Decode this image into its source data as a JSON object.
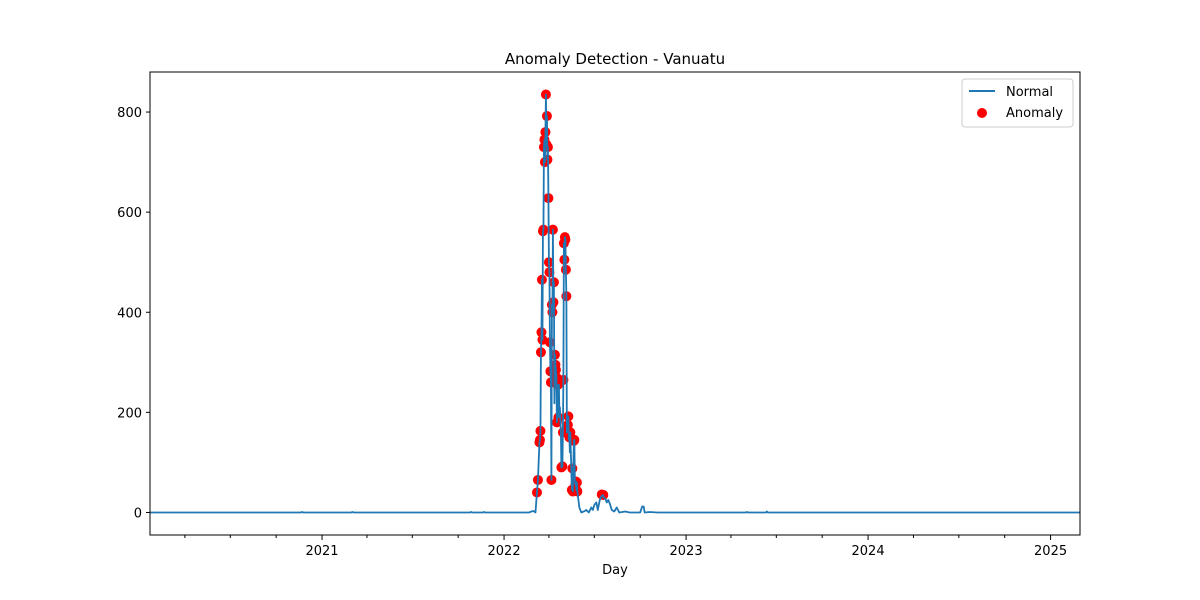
{
  "chart_data": {
    "type": "line",
    "title": "Anomaly Detection - Vanuatu",
    "xlabel": "Day",
    "ylabel": "",
    "xlim": [
      "2020-01-22",
      "2025-03-01"
    ],
    "ylim": [
      -45,
      880
    ],
    "x_ticks": [
      "2021",
      "2022",
      "2023",
      "2024",
      "2025"
    ],
    "y_ticks": [
      0,
      200,
      400,
      600,
      800
    ],
    "grid": false,
    "legend": {
      "position": "top-right",
      "entries": [
        "Normal",
        "Anomaly"
      ]
    },
    "colors": {
      "normal": "#1f77b4",
      "anomaly": "#ff0000"
    },
    "series": [
      {
        "name": "Normal",
        "type": "line",
        "points": [
          [
            "2020-01-22",
            0
          ],
          [
            "2020-11-20",
            0
          ],
          [
            "2020-11-22",
            1
          ],
          [
            "2020-11-24",
            0
          ],
          [
            "2021-03-01",
            0
          ],
          [
            "2021-03-03",
            1
          ],
          [
            "2021-03-05",
            0
          ],
          [
            "2021-10-25",
            0
          ],
          [
            "2021-10-27",
            1
          ],
          [
            "2021-10-29",
            0
          ],
          [
            "2021-11-20",
            0
          ],
          [
            "2021-11-22",
            1
          ],
          [
            "2021-11-24",
            0
          ],
          [
            "2022-02-20",
            0
          ],
          [
            "2022-02-25",
            2
          ],
          [
            "2022-03-01",
            3
          ],
          [
            "2022-03-05",
            0
          ],
          [
            "2022-03-08",
            40
          ],
          [
            "2022-03-10",
            65
          ],
          [
            "2022-03-13",
            140
          ],
          [
            "2022-03-14",
            145
          ],
          [
            "2022-03-15",
            163
          ],
          [
            "2022-03-16",
            320
          ],
          [
            "2022-03-17",
            360
          ],
          [
            "2022-03-18",
            465
          ],
          [
            "2022-03-19",
            345
          ],
          [
            "2022-03-20",
            562
          ],
          [
            "2022-03-21",
            565
          ],
          [
            "2022-03-22",
            730
          ],
          [
            "2022-03-23",
            745
          ],
          [
            "2022-03-24",
            700
          ],
          [
            "2022-03-25",
            760
          ],
          [
            "2022-03-26",
            835
          ],
          [
            "2022-03-27",
            735
          ],
          [
            "2022-03-28",
            792
          ],
          [
            "2022-03-29",
            705
          ],
          [
            "2022-03-30",
            730
          ],
          [
            "2022-03-31",
            628
          ],
          [
            "2022-04-01",
            500
          ],
          [
            "2022-04-02",
            480
          ],
          [
            "2022-04-03",
            340
          ],
          [
            "2022-04-04",
            282
          ],
          [
            "2022-04-05",
            260
          ],
          [
            "2022-04-06",
            65
          ],
          [
            "2022-04-07",
            415
          ],
          [
            "2022-04-08",
            400
          ],
          [
            "2022-04-09",
            565
          ],
          [
            "2022-04-10",
            420
          ],
          [
            "2022-04-11",
            460
          ],
          [
            "2022-04-12",
            218
          ],
          [
            "2022-04-13",
            315
          ],
          [
            "2022-04-14",
            295
          ],
          [
            "2022-04-15",
            285
          ],
          [
            "2022-04-16",
            270
          ],
          [
            "2022-04-17",
            180
          ],
          [
            "2022-04-18",
            255
          ],
          [
            "2022-04-19",
            255
          ],
          [
            "2022-04-20",
            190
          ],
          [
            "2022-04-21",
            255
          ],
          [
            "2022-04-22",
            200
          ],
          [
            "2022-04-23",
            210
          ],
          [
            "2022-04-25",
            160
          ],
          [
            "2022-04-26",
            90
          ],
          [
            "2022-04-28",
            92
          ],
          [
            "2022-04-29",
            160
          ],
          [
            "2022-04-30",
            265
          ],
          [
            "2022-05-01",
            538
          ],
          [
            "2022-05-02",
            505
          ],
          [
            "2022-05-03",
            550
          ],
          [
            "2022-05-04",
            545
          ],
          [
            "2022-05-05",
            485
          ],
          [
            "2022-05-06",
            432
          ],
          [
            "2022-05-07",
            160
          ],
          [
            "2022-05-08",
            168
          ],
          [
            "2022-05-09",
            175
          ],
          [
            "2022-05-10",
            192
          ],
          [
            "2022-05-11",
            145
          ],
          [
            "2022-05-12",
            150
          ],
          [
            "2022-05-13",
            120
          ],
          [
            "2022-05-14",
            160
          ],
          [
            "2022-05-15",
            118
          ],
          [
            "2022-05-17",
            45
          ],
          [
            "2022-05-18",
            88
          ],
          [
            "2022-05-19",
            42
          ],
          [
            "2022-05-20",
            95
          ],
          [
            "2022-05-21",
            143
          ],
          [
            "2022-05-22",
            145
          ],
          [
            "2022-05-23",
            65
          ],
          [
            "2022-05-24",
            55
          ],
          [
            "2022-05-25",
            62
          ],
          [
            "2022-05-26",
            45
          ],
          [
            "2022-05-27",
            60
          ],
          [
            "2022-05-28",
            42
          ],
          [
            "2022-06-01",
            10
          ],
          [
            "2022-06-05",
            0
          ],
          [
            "2022-06-10",
            2
          ],
          [
            "2022-06-15",
            5
          ],
          [
            "2022-06-20",
            0
          ],
          [
            "2022-06-25",
            10
          ],
          [
            "2022-06-28",
            5
          ],
          [
            "2022-07-01",
            15
          ],
          [
            "2022-07-05",
            20
          ],
          [
            "2022-07-08",
            5
          ],
          [
            "2022-07-12",
            25
          ],
          [
            "2022-07-15",
            32
          ],
          [
            "2022-07-18",
            35
          ],
          [
            "2022-07-20",
            30
          ],
          [
            "2022-07-23",
            28
          ],
          [
            "2022-07-26",
            20
          ],
          [
            "2022-07-29",
            25
          ],
          [
            "2022-08-02",
            15
          ],
          [
            "2022-08-05",
            5
          ],
          [
            "2022-08-10",
            2
          ],
          [
            "2022-08-15",
            10
          ],
          [
            "2022-08-20",
            0
          ],
          [
            "2022-09-01",
            2
          ],
          [
            "2022-09-10",
            0
          ],
          [
            "2022-10-01",
            0
          ],
          [
            "2022-10-05",
            12
          ],
          [
            "2022-10-08",
            12
          ],
          [
            "2022-10-10",
            0
          ],
          [
            "2022-10-20",
            1
          ],
          [
            "2022-11-05",
            0
          ],
          [
            "2023-05-01",
            0
          ],
          [
            "2023-05-03",
            1
          ],
          [
            "2023-05-05",
            0
          ],
          [
            "2023-06-10",
            0
          ],
          [
            "2023-06-12",
            2
          ],
          [
            "2023-06-14",
            0
          ],
          [
            "2025-03-01",
            0
          ]
        ]
      },
      {
        "name": "Anomaly",
        "type": "scatter",
        "points": [
          [
            "2022-03-08",
            40
          ],
          [
            "2022-03-10",
            65
          ],
          [
            "2022-03-13",
            140
          ],
          [
            "2022-03-14",
            145
          ],
          [
            "2022-03-15",
            163
          ],
          [
            "2022-03-16",
            320
          ],
          [
            "2022-03-17",
            360
          ],
          [
            "2022-03-18",
            465
          ],
          [
            "2022-03-19",
            345
          ],
          [
            "2022-03-20",
            562
          ],
          [
            "2022-03-21",
            565
          ],
          [
            "2022-03-22",
            730
          ],
          [
            "2022-03-23",
            745
          ],
          [
            "2022-03-24",
            700
          ],
          [
            "2022-03-25",
            760
          ],
          [
            "2022-03-26",
            835
          ],
          [
            "2022-03-27",
            735
          ],
          [
            "2022-03-28",
            792
          ],
          [
            "2022-03-29",
            705
          ],
          [
            "2022-03-30",
            730
          ],
          [
            "2022-03-31",
            628
          ],
          [
            "2022-04-01",
            500
          ],
          [
            "2022-04-02",
            480
          ],
          [
            "2022-04-03",
            340
          ],
          [
            "2022-04-04",
            282
          ],
          [
            "2022-04-05",
            260
          ],
          [
            "2022-04-06",
            65
          ],
          [
            "2022-04-07",
            415
          ],
          [
            "2022-04-08",
            400
          ],
          [
            "2022-04-09",
            565
          ],
          [
            "2022-04-10",
            420
          ],
          [
            "2022-04-11",
            460
          ],
          [
            "2022-04-13",
            315
          ],
          [
            "2022-04-14",
            295
          ],
          [
            "2022-04-15",
            285
          ],
          [
            "2022-04-16",
            270
          ],
          [
            "2022-04-17",
            180
          ],
          [
            "2022-04-18",
            255
          ],
          [
            "2022-04-19",
            255
          ],
          [
            "2022-04-20",
            190
          ],
          [
            "2022-04-26",
            90
          ],
          [
            "2022-04-28",
            92
          ],
          [
            "2022-04-29",
            160
          ],
          [
            "2022-04-30",
            265
          ],
          [
            "2022-05-01",
            538
          ],
          [
            "2022-05-02",
            505
          ],
          [
            "2022-05-03",
            550
          ],
          [
            "2022-05-04",
            545
          ],
          [
            "2022-05-05",
            485
          ],
          [
            "2022-05-06",
            432
          ],
          [
            "2022-05-07",
            160
          ],
          [
            "2022-05-09",
            175
          ],
          [
            "2022-05-10",
            192
          ],
          [
            "2022-05-12",
            150
          ],
          [
            "2022-05-14",
            160
          ],
          [
            "2022-05-17",
            45
          ],
          [
            "2022-05-18",
            88
          ],
          [
            "2022-05-19",
            42
          ],
          [
            "2022-05-21",
            143
          ],
          [
            "2022-05-22",
            145
          ],
          [
            "2022-05-24",
            55
          ],
          [
            "2022-05-25",
            62
          ],
          [
            "2022-05-26",
            45
          ],
          [
            "2022-05-27",
            60
          ],
          [
            "2022-05-28",
            42
          ],
          [
            "2022-07-16",
            36
          ],
          [
            "2022-07-19",
            35
          ]
        ]
      }
    ]
  }
}
